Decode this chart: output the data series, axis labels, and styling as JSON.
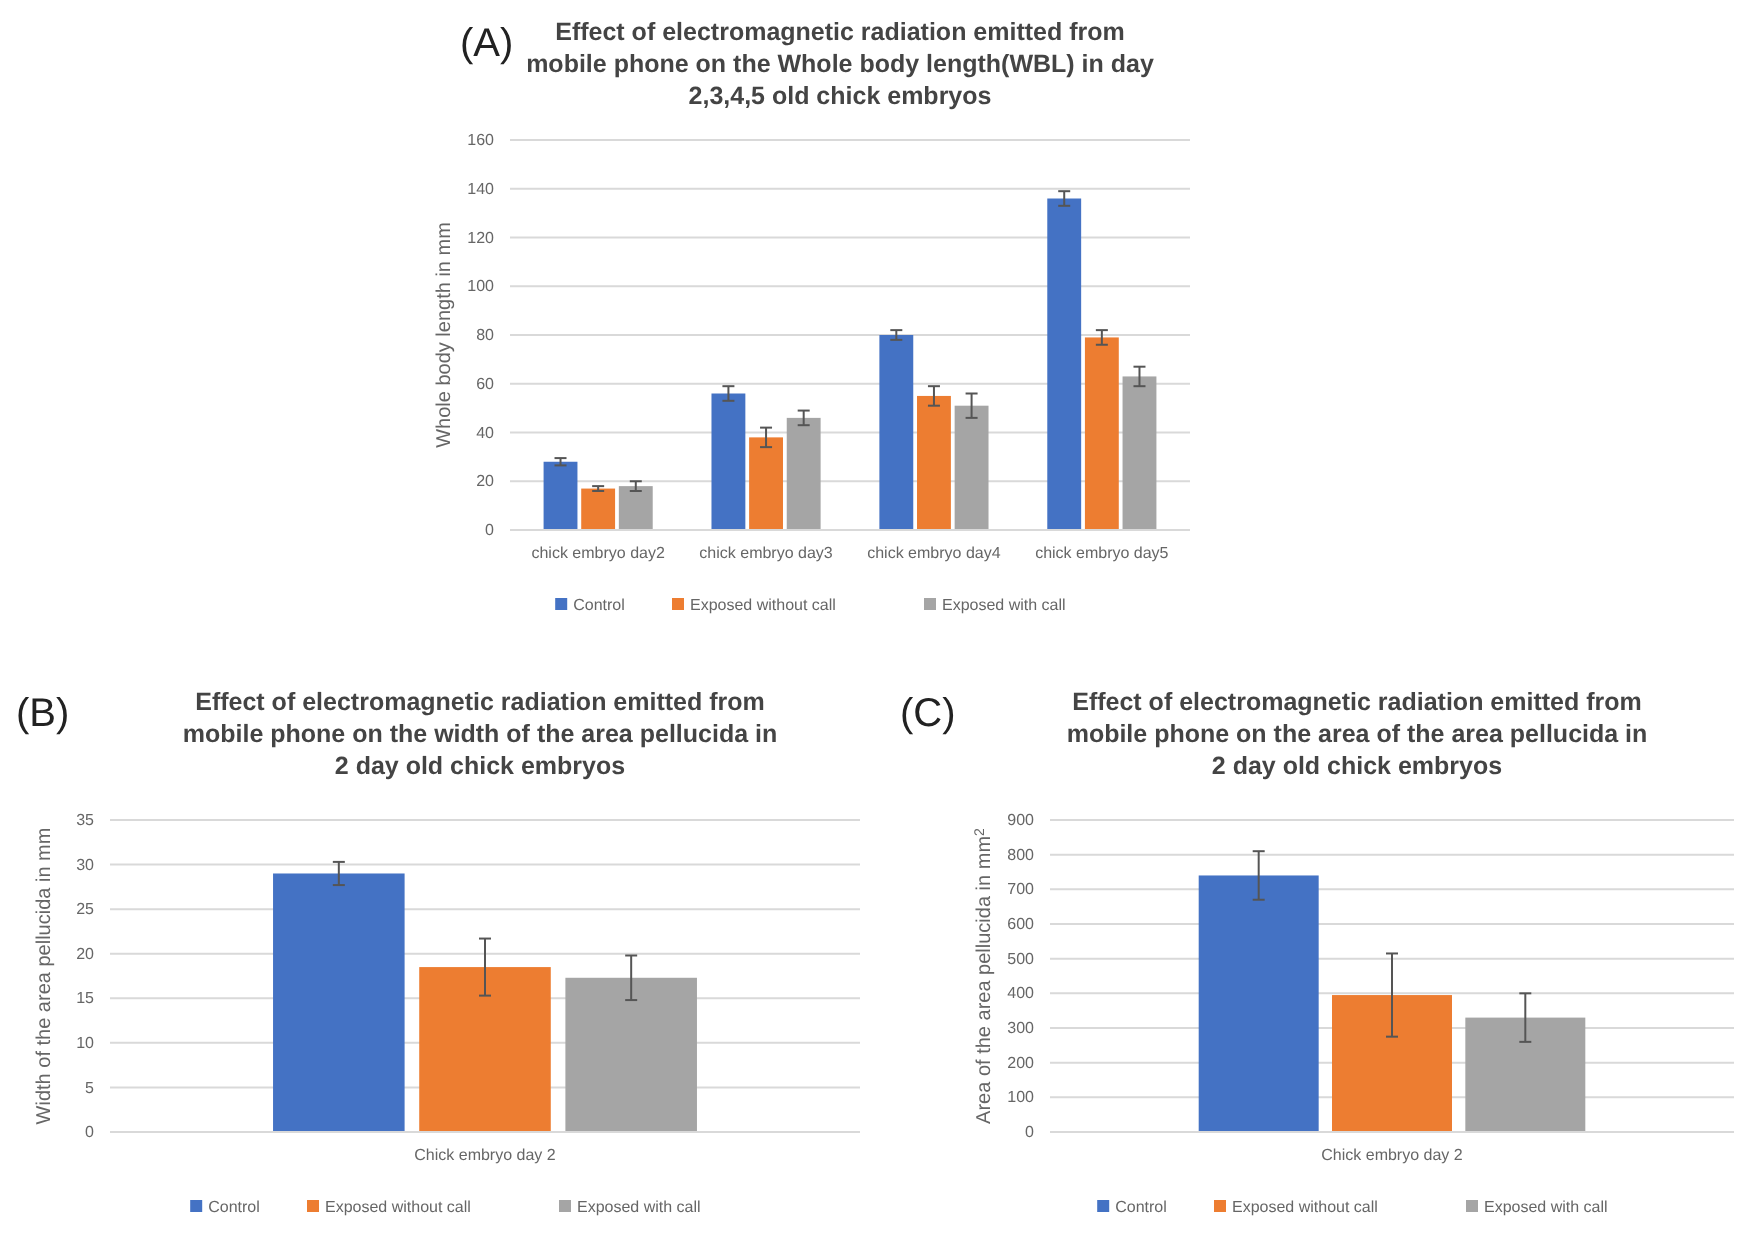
{
  "chart_data": [
    {
      "type": "bar",
      "title": "Effect of electromagnetic radiation emitted from mobile phone on the Whole body length(WBL) in day 2,3,4,5 old chick embryos",
      "annotations": [
        "(A)"
      ],
      "ylabel": "Whole body length in mm",
      "categories": [
        "chick embryo day2",
        "chick embryo day3",
        "chick embryo day4",
        "chick embryo day5"
      ],
      "series": [
        {
          "name": "Control",
          "color": "#4472c4",
          "values": [
            28,
            56,
            80,
            136
          ],
          "errors": [
            1.5,
            3,
            2,
            3
          ]
        },
        {
          "name": "Exposed without call",
          "color": "#ed7d31",
          "values": [
            17,
            38,
            55,
            79
          ],
          "errors": [
            1,
            4,
            4,
            3
          ]
        },
        {
          "name": "Exposed with call",
          "color": "#a5a5a5",
          "values": [
            18,
            46,
            51,
            63
          ],
          "errors": [
            2,
            3,
            5,
            4
          ]
        }
      ],
      "ylim": [
        0,
        160
      ],
      "yticks": [
        0,
        20,
        40,
        60,
        80,
        100,
        120,
        140,
        160
      ],
      "grid": "y",
      "legend": "bottom"
    },
    {
      "type": "bar",
      "title": "Effect of electromagnetic radiation emitted from mobile phone on the width of the area pellucida in 2 day old chick embryos",
      "annotations": [
        "(B)"
      ],
      "ylabel": "Width of the area pellucida in mm",
      "categories": [
        "Chick embryo day 2"
      ],
      "series": [
        {
          "name": "Control",
          "color": "#4472c4",
          "values": [
            29
          ],
          "errors": [
            1.3
          ]
        },
        {
          "name": "Exposed without call",
          "color": "#ed7d31",
          "values": [
            18.5
          ],
          "errors": [
            3.2
          ]
        },
        {
          "name": "Exposed with call",
          "color": "#a5a5a5",
          "values": [
            17.3
          ],
          "errors": [
            2.5
          ]
        }
      ],
      "ylim": [
        0,
        35
      ],
      "yticks": [
        0,
        5,
        10,
        15,
        20,
        25,
        30,
        35
      ],
      "grid": "y",
      "legend": "bottom"
    },
    {
      "type": "bar",
      "title": "Effect of electromagnetic radiation emitted from mobile phone on the area of the area pellucida in 2 day old chick embryos",
      "annotations": [
        "(C)"
      ],
      "ylabel": "Area of the area pellucida in mm$^{2}$",
      "categories": [
        "Chick embryo day 2"
      ],
      "series": [
        {
          "name": "Control",
          "color": "#4472c4",
          "values": [
            740
          ],
          "errors": [
            70
          ]
        },
        {
          "name": "Exposed without call",
          "color": "#ed7d31",
          "values": [
            395
          ],
          "errors": [
            120
          ]
        },
        {
          "name": "Exposed with call",
          "color": "#a5a5a5",
          "values": [
            330
          ],
          "errors": [
            70
          ]
        }
      ],
      "ylim": [
        0,
        900
      ],
      "yticks": [
        0,
        100,
        200,
        300,
        400,
        500,
        600,
        700,
        800,
        900
      ],
      "grid": "y",
      "legend": "bottom"
    }
  ]
}
